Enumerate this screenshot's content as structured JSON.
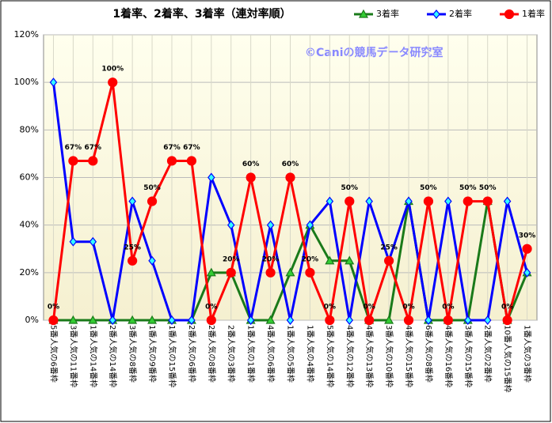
{
  "chart_data": {
    "type": "line",
    "title": "1着率、2着率、3着率（連対率順）",
    "watermark": "©Caniの競馬データ研究室",
    "categories": [
      "5番人気の6番枠",
      "3番人気の11番枠",
      "1番人気の14番枠",
      "2番人気の14番枠",
      "3番人気の8番枠",
      "1番人気の9番枠",
      "1番人気の15番枠",
      "2番人気の6番枠",
      "2番人気の8番枠",
      "2番人気の3番枠",
      "1番人気の1番枠",
      "4番人気の6番枠",
      "1番人気の5番枠",
      "1番人気の4番枠",
      "5番人気の14番枠",
      "4番人気の12番枠",
      "4番人気の13番枠",
      "3番人気の10番枠",
      "4番人気の15番枠",
      "6番人気の8番枠",
      "4番人気の16番枠",
      "3番人気の15番枠",
      "2番人気の2番枠",
      "10番人気の15番枠",
      "1番人気の3番枠"
    ],
    "series": [
      {
        "name": "3着率",
        "color": "#1a7a1a",
        "fill": "#33cc33",
        "marker": "triangle",
        "values": [
          0,
          0,
          0,
          0,
          0,
          0,
          0,
          0,
          20,
          20,
          0,
          0,
          20,
          40,
          25,
          25,
          0,
          0,
          50,
          0,
          0,
          0,
          50,
          0,
          20
        ]
      },
      {
        "name": "2着率",
        "color": "#0000ff",
        "fill": "#33ffff",
        "marker": "diamond",
        "values": [
          100,
          33,
          33,
          0,
          50,
          25,
          0,
          0,
          60,
          40,
          0,
          40,
          0,
          40,
          50,
          0,
          50,
          25,
          50,
          0,
          50,
          0,
          0,
          50,
          20
        ]
      },
      {
        "name": "1着率",
        "color": "#ff0000",
        "fill": "#ff0000",
        "marker": "circle",
        "values": [
          0,
          67,
          67,
          100,
          25,
          50,
          67,
          67,
          0,
          20,
          60,
          20,
          60,
          20,
          0,
          50,
          0,
          25,
          0,
          50,
          0,
          50,
          50,
          0,
          30
        ],
        "value_labels": [
          "0%",
          "67%",
          "67%",
          "100%",
          "25%",
          "50%",
          "67%",
          "67%",
          "0%",
          "20%",
          "60%",
          "20%",
          "60%",
          "20%",
          "0%",
          "50%",
          "0%",
          "25%",
          "0%",
          "50%",
          "0%",
          "50%",
          "50%",
          "0%",
          "30%"
        ]
      }
    ],
    "ylim": [
      0,
      120
    ],
    "yticks": [
      {
        "value": 0,
        "label": "0%"
      },
      {
        "value": 20,
        "label": "20%"
      },
      {
        "value": 40,
        "label": "40%"
      },
      {
        "value": 60,
        "label": "60%"
      },
      {
        "value": 80,
        "label": "80%"
      },
      {
        "value": 100,
        "label": "100%"
      },
      {
        "value": 120,
        "label": "120%"
      }
    ],
    "grid": true
  }
}
